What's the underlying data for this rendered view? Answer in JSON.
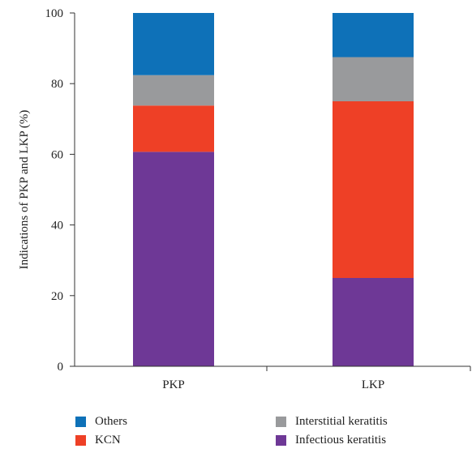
{
  "chart_data": {
    "type": "bar",
    "stacked": true,
    "categories": [
      "PKP",
      "LKP"
    ],
    "ylabel": "Indications of PKP and LKP (%)",
    "ylim": [
      0,
      100
    ],
    "yticks": [
      0,
      20,
      40,
      60,
      80,
      100
    ],
    "grid": false,
    "legend_position": "bottom",
    "series": [
      {
        "name": "Infectious keratitis",
        "values": [
          60.7,
          25.0
        ],
        "color": "#6e3896"
      },
      {
        "name": "KCN",
        "values": [
          13.1,
          50.0
        ],
        "color": "#ee4026"
      },
      {
        "name": "Interstitial keratitis",
        "values": [
          8.6,
          12.5
        ],
        "color": "#999a9c"
      },
      {
        "name": "Others",
        "values": [
          17.6,
          12.5
        ],
        "color": "#0e71b8"
      }
    ],
    "legend_order": [
      "Others",
      "Interstitial keratitis",
      "KCN",
      "Infectious keratitis"
    ]
  }
}
